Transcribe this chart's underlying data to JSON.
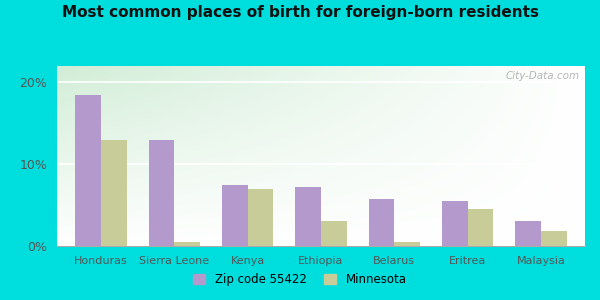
{
  "title": "Most common places of birth for foreign-born residents",
  "categories": [
    "Honduras",
    "Sierra Leone",
    "Kenya",
    "Ethiopia",
    "Belarus",
    "Eritrea",
    "Malaysia"
  ],
  "zip_values": [
    18.5,
    13.0,
    7.5,
    7.2,
    5.8,
    5.5,
    3.0
  ],
  "mn_values": [
    13.0,
    0.5,
    7.0,
    3.0,
    0.5,
    4.5,
    1.8
  ],
  "zip_color": "#b399cc",
  "mn_color": "#c8cc99",
  "background_outer": "#00dddd",
  "background_inner_tl": "#d4eed8",
  "background_inner_tr": "#e8f8ee",
  "background_inner_br": "#ffffff",
  "yticks": [
    0,
    10,
    20
  ],
  "yticklabels": [
    "0%",
    "10%",
    "20%"
  ],
  "ylim": [
    0,
    22
  ],
  "bar_width": 0.35,
  "legend_zip_label": "Zip code 55422",
  "legend_mn_label": "Minnesota",
  "watermark": "City-Data.com"
}
